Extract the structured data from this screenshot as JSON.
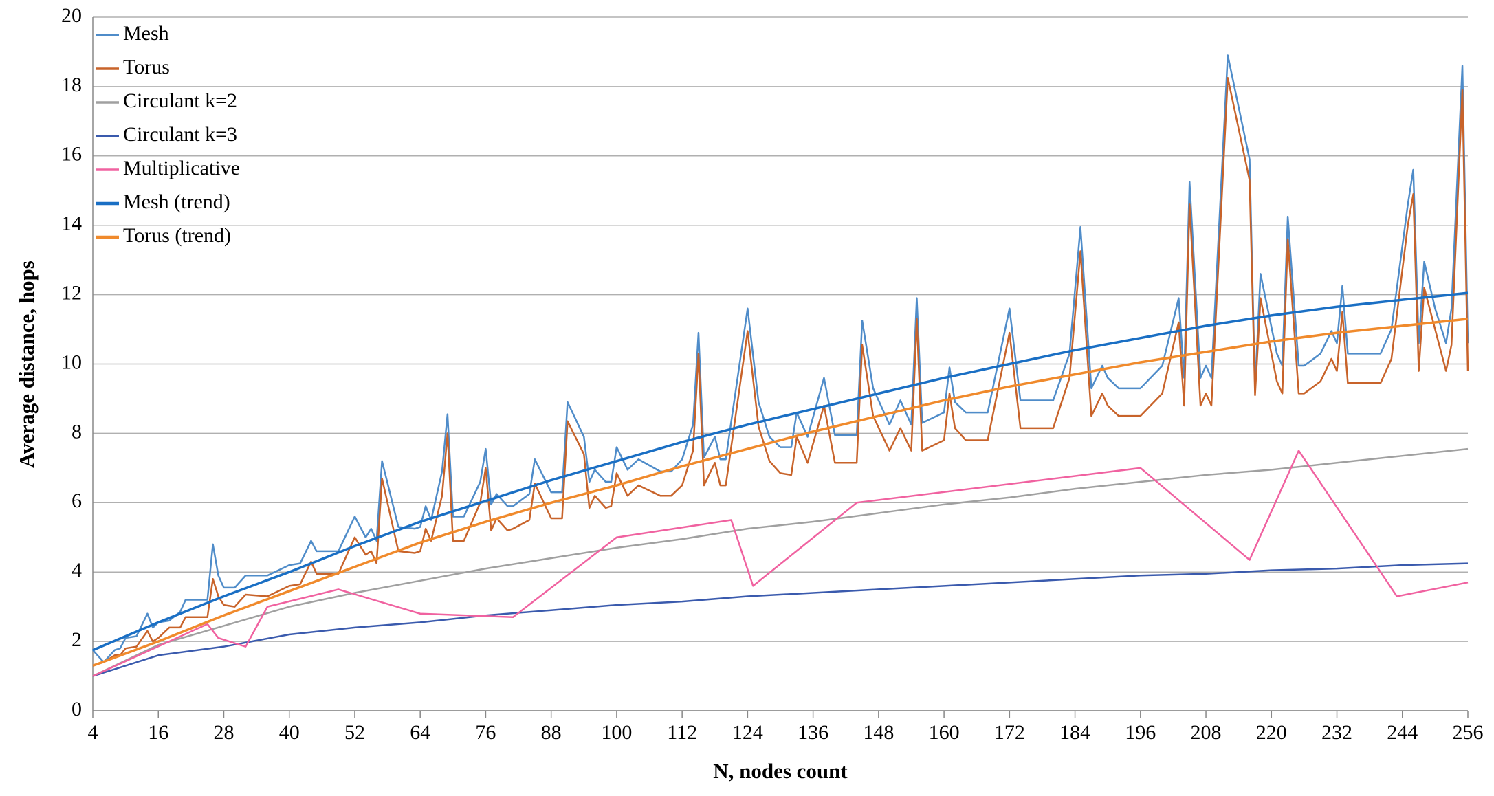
{
  "chart_data": {
    "type": "line",
    "xlabel": "N, nodes count",
    "ylabel": "Average distance, hops",
    "xlim": [
      4,
      256
    ],
    "xticks": [
      4,
      16,
      28,
      40,
      52,
      64,
      76,
      88,
      100,
      112,
      124,
      136,
      148,
      160,
      172,
      184,
      196,
      208,
      220,
      232,
      244,
      256
    ],
    "ylim": [
      0,
      20
    ],
    "yticks": [
      0,
      2,
      4,
      6,
      8,
      10,
      12,
      14,
      16,
      18,
      20
    ],
    "grid": true,
    "legend": "upper left",
    "series": [
      {
        "name": "Mesh",
        "color": "#4f8cc9",
        "width": 2.5,
        "x": [
          4,
          6,
          8,
          9,
          10,
          12,
          14,
          15,
          16,
          18,
          20,
          21,
          24,
          25,
          26,
          27,
          28,
          30,
          32,
          36,
          40,
          42,
          44,
          45,
          48,
          49,
          52,
          54,
          55,
          56,
          57,
          60,
          63,
          64,
          65,
          66,
          68,
          69,
          70,
          72,
          75,
          76,
          77,
          78,
          80,
          81,
          84,
          85,
          88,
          90,
          91,
          94,
          95,
          96,
          98,
          99,
          100,
          102,
          104,
          108,
          110,
          112,
          114,
          115,
          116,
          118,
          119,
          120,
          124,
          126,
          128,
          130,
          132,
          133,
          135,
          138,
          140,
          144,
          145,
          147,
          150,
          152,
          154,
          155,
          156,
          160,
          161,
          162,
          164,
          168,
          172,
          174,
          180,
          183,
          185,
          187,
          189,
          190,
          192,
          196,
          200,
          203,
          204,
          205,
          207,
          208,
          209,
          212,
          216,
          217,
          218,
          221,
          222,
          223,
          225,
          226,
          229,
          231,
          232,
          233,
          234,
          240,
          242,
          245,
          246,
          247,
          248,
          250,
          252,
          253,
          255,
          256
        ],
        "values": [
          1.75,
          1.4,
          1.75,
          1.8,
          2.1,
          2.15,
          2.8,
          2.4,
          2.55,
          2.6,
          2.85,
          3.2,
          3.2,
          3.2,
          4.8,
          3.9,
          3.55,
          3.55,
          3.9,
          3.9,
          4.2,
          4.25,
          4.9,
          4.6,
          4.6,
          4.6,
          5.6,
          5.0,
          5.25,
          4.9,
          7.2,
          5.3,
          5.25,
          5.3,
          5.9,
          5.5,
          6.9,
          8.55,
          5.6,
          5.6,
          6.6,
          7.55,
          5.95,
          6.25,
          5.9,
          5.9,
          6.25,
          7.25,
          6.3,
          6.3,
          8.9,
          7.9,
          6.6,
          6.95,
          6.6,
          6.6,
          7.6,
          6.95,
          7.25,
          6.9,
          6.9,
          7.25,
          8.25,
          10.9,
          7.3,
          7.9,
          7.25,
          7.25,
          11.6,
          8.9,
          7.9,
          7.6,
          7.6,
          8.6,
          7.9,
          9.6,
          7.95,
          7.95,
          11.25,
          9.3,
          8.25,
          8.95,
          8.25,
          11.9,
          8.3,
          8.6,
          9.9,
          8.9,
          8.6,
          8.6,
          11.6,
          8.95,
          8.95,
          10.3,
          13.95,
          9.3,
          9.95,
          9.6,
          9.3,
          9.3,
          9.95,
          11.9,
          9.6,
          15.25,
          9.6,
          9.95,
          9.6,
          18.9,
          15.9,
          9.3,
          12.6,
          10.3,
          9.95,
          14.25,
          9.95,
          9.95,
          10.3,
          10.95,
          10.6,
          12.25,
          10.3,
          10.3,
          11.0,
          14.6,
          15.6,
          10.6,
          12.95,
          11.6,
          10.6,
          11.6,
          18.6,
          10.6
        ]
      },
      {
        "name": "Torus",
        "color": "#c8632a",
        "width": 2.5,
        "x": [
          4,
          6,
          8,
          9,
          10,
          12,
          14,
          15,
          16,
          18,
          20,
          21,
          24,
          25,
          26,
          27,
          28,
          30,
          32,
          36,
          40,
          42,
          44,
          45,
          48,
          49,
          52,
          54,
          55,
          56,
          57,
          60,
          63,
          64,
          65,
          66,
          68,
          69,
          70,
          72,
          75,
          76,
          77,
          78,
          80,
          81,
          84,
          85,
          88,
          90,
          91,
          94,
          95,
          96,
          98,
          99,
          100,
          102,
          104,
          108,
          110,
          112,
          114,
          115,
          116,
          118,
          119,
          120,
          124,
          126,
          128,
          130,
          132,
          133,
          135,
          138,
          140,
          144,
          145,
          147,
          150,
          152,
          154,
          155,
          156,
          160,
          161,
          162,
          164,
          168,
          172,
          174,
          180,
          183,
          185,
          187,
          189,
          190,
          192,
          196,
          200,
          203,
          204,
          205,
          207,
          208,
          209,
          212,
          216,
          217,
          218,
          221,
          222,
          223,
          225,
          226,
          229,
          231,
          232,
          233,
          234,
          240,
          242,
          245,
          246,
          247,
          248,
          250,
          252,
          253,
          255,
          256
        ],
        "values": [
          1.3,
          1.4,
          1.6,
          1.6,
          1.8,
          1.85,
          2.3,
          2.0,
          2.1,
          2.4,
          2.4,
          2.7,
          2.7,
          2.7,
          3.8,
          3.3,
          3.05,
          3.0,
          3.35,
          3.3,
          3.6,
          3.65,
          4.3,
          3.95,
          3.95,
          3.95,
          5.0,
          4.5,
          4.6,
          4.25,
          6.7,
          4.6,
          4.55,
          4.6,
          5.25,
          4.9,
          6.2,
          8.0,
          4.9,
          4.9,
          6.0,
          7.0,
          5.2,
          5.55,
          5.2,
          5.25,
          5.5,
          6.55,
          5.55,
          5.55,
          8.35,
          7.4,
          5.85,
          6.2,
          5.85,
          5.9,
          6.85,
          6.2,
          6.5,
          6.2,
          6.2,
          6.5,
          7.5,
          10.3,
          6.5,
          7.15,
          6.5,
          6.5,
          10.95,
          8.2,
          7.2,
          6.85,
          6.8,
          7.9,
          7.15,
          8.8,
          7.15,
          7.15,
          10.55,
          8.5,
          7.5,
          8.15,
          7.5,
          11.3,
          7.5,
          7.8,
          9.15,
          8.15,
          7.8,
          7.8,
          10.9,
          8.15,
          8.15,
          9.6,
          13.25,
          8.5,
          9.15,
          8.8,
          8.5,
          8.5,
          9.15,
          11.2,
          8.8,
          14.6,
          8.8,
          9.15,
          8.8,
          18.25,
          15.3,
          9.1,
          11.9,
          9.5,
          9.15,
          13.6,
          9.15,
          9.15,
          9.5,
          10.15,
          9.8,
          11.5,
          9.45,
          9.45,
          10.15,
          14.0,
          14.9,
          9.8,
          12.2,
          11.0,
          9.8,
          10.55,
          17.9,
          9.8
        ]
      },
      {
        "name": "Circulant k=2",
        "color": "#a0a0a0",
        "width": 2.5,
        "x": [
          4,
          16,
          28,
          40,
          52,
          64,
          76,
          88,
          100,
          112,
          124,
          136,
          148,
          160,
          172,
          184,
          196,
          208,
          220,
          232,
          244,
          256
        ],
        "values": [
          1.0,
          1.9,
          2.45,
          3.0,
          3.4,
          3.75,
          4.1,
          4.4,
          4.7,
          4.95,
          5.25,
          5.45,
          5.7,
          5.95,
          6.15,
          6.4,
          6.6,
          6.8,
          6.95,
          7.15,
          7.35,
          7.55
        ]
      },
      {
        "name": "Circulant k=3",
        "color": "#3a5aad",
        "width": 2.5,
        "x": [
          4,
          16,
          28,
          40,
          52,
          64,
          76,
          88,
          100,
          112,
          124,
          136,
          148,
          160,
          172,
          184,
          196,
          208,
          220,
          232,
          244,
          256
        ],
        "values": [
          1.0,
          1.6,
          1.85,
          2.2,
          2.4,
          2.55,
          2.75,
          2.9,
          3.05,
          3.15,
          3.3,
          3.4,
          3.5,
          3.6,
          3.7,
          3.8,
          3.9,
          3.95,
          4.05,
          4.1,
          4.2,
          4.25
        ]
      },
      {
        "name": "Multiplicative",
        "color": "#f062a0",
        "width": 2.5,
        "x": [
          4,
          25,
          27,
          32,
          36,
          49,
          64,
          81,
          100,
          121,
          125,
          144,
          196,
          216,
          225,
          243,
          256
        ],
        "values": [
          1.0,
          2.5,
          2.1,
          1.85,
          3.0,
          3.5,
          2.8,
          2.7,
          5.0,
          5.5,
          3.6,
          6.0,
          7.0,
          4.35,
          7.5,
          3.3,
          3.7
        ]
      },
      {
        "name": "Mesh (trend)",
        "color": "#1a6fc4",
        "width": 3.5,
        "x": [
          4,
          16,
          28,
          40,
          52,
          64,
          76,
          88,
          100,
          112,
          124,
          136,
          148,
          160,
          172,
          184,
          196,
          208,
          220,
          232,
          244,
          256
        ],
        "values": [
          1.75,
          2.55,
          3.3,
          4.0,
          4.75,
          5.45,
          6.05,
          6.65,
          7.2,
          7.75,
          8.25,
          8.7,
          9.15,
          9.6,
          10.0,
          10.4,
          10.75,
          11.1,
          11.4,
          11.65,
          11.85,
          12.05
        ]
      },
      {
        "name": "Torus (trend)",
        "color": "#f08a2c",
        "width": 3.5,
        "x": [
          4,
          16,
          28,
          40,
          52,
          64,
          76,
          88,
          100,
          112,
          124,
          136,
          148,
          160,
          172,
          184,
          196,
          208,
          220,
          232,
          244,
          256
        ],
        "values": [
          1.3,
          2.0,
          2.75,
          3.45,
          4.15,
          4.85,
          5.45,
          6.0,
          6.5,
          7.05,
          7.55,
          8.05,
          8.5,
          8.95,
          9.35,
          9.7,
          10.05,
          10.35,
          10.65,
          10.9,
          11.1,
          11.3
        ]
      }
    ]
  }
}
